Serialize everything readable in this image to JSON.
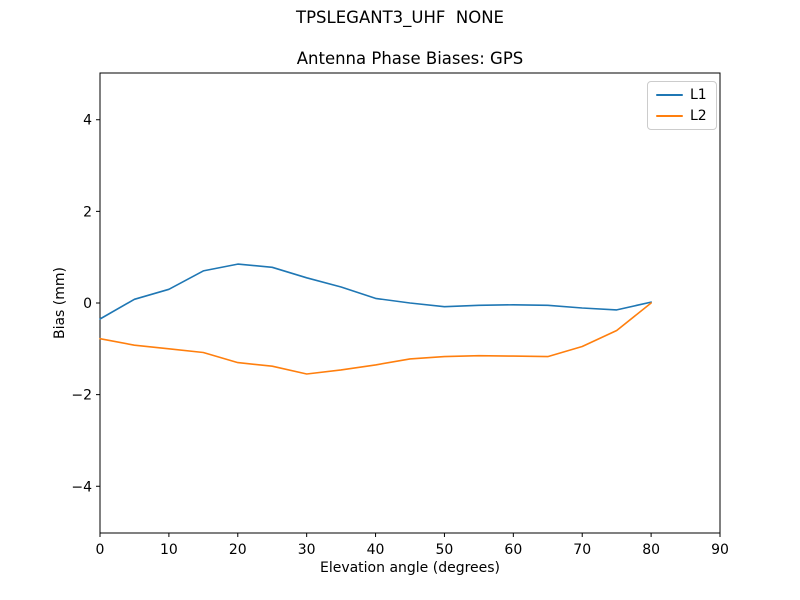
{
  "figure": {
    "suptitle": "TPSLEGANT3_UHF  NONE",
    "axes_title": "Antenna Phase Biases: GPS",
    "xlabel": "Elevation angle (degrees)",
    "ylabel": "Bias (mm)"
  },
  "legend": {
    "position": "upper right",
    "entries": [
      {
        "label": "L1",
        "color": "#1f77b4"
      },
      {
        "label": "L2",
        "color": "#ff7f0e"
      }
    ]
  },
  "chart_data": {
    "type": "line",
    "suptitle": "TPSLEGANT3_UHF  NONE",
    "title": "Antenna Phase Biases: GPS",
    "xlabel": "Elevation angle (degrees)",
    "ylabel": "Bias (mm)",
    "xlim": [
      0,
      90
    ],
    "ylim": [
      -5.02,
      5.02
    ],
    "xticks": [
      0,
      10,
      20,
      30,
      40,
      50,
      60,
      70,
      80,
      90
    ],
    "xtick_labels": [
      "0",
      "10",
      "20",
      "30",
      "40",
      "50",
      "60",
      "70",
      "80",
      "90"
    ],
    "yticks": [
      -4,
      -2,
      0,
      2,
      4
    ],
    "ytick_labels": [
      "−4",
      "−2",
      "0",
      "2",
      "4"
    ],
    "grid": false,
    "legend_position": "upper right",
    "x": [
      0,
      5,
      10,
      15,
      20,
      25,
      30,
      35,
      40,
      45,
      50,
      55,
      60,
      65,
      70,
      75,
      80
    ],
    "series": [
      {
        "name": "L1",
        "color": "#1f77b4",
        "values": [
          -0.35,
          0.08,
          0.3,
          0.7,
          0.85,
          0.78,
          0.55,
          0.35,
          0.1,
          0.0,
          -0.08,
          -0.05,
          -0.04,
          -0.05,
          -0.11,
          -0.15,
          0.02
        ]
      },
      {
        "name": "L2",
        "color": "#ff7f0e",
        "values": [
          -0.78,
          -0.92,
          -1.0,
          -1.08,
          -1.3,
          -1.38,
          -1.55,
          -1.46,
          -1.35,
          -1.22,
          -1.17,
          -1.15,
          -1.16,
          -1.17,
          -0.95,
          -0.6,
          0.0
        ]
      }
    ]
  }
}
